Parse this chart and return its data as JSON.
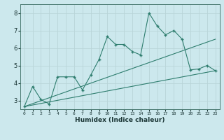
{
  "xlabel": "Humidex (Indice chaleur)",
  "bg_color": "#cce8ed",
  "grid_color": "#b8d4d8",
  "line_color": "#2e7d6e",
  "xlim": [
    -0.5,
    23.5
  ],
  "ylim": [
    2.5,
    8.5
  ],
  "xticks": [
    0,
    1,
    2,
    3,
    4,
    5,
    6,
    7,
    8,
    9,
    10,
    11,
    12,
    13,
    14,
    15,
    16,
    17,
    18,
    19,
    20,
    21,
    22,
    23
  ],
  "yticks": [
    3,
    4,
    5,
    6,
    7,
    8
  ],
  "zigzag_x": [
    0,
    1,
    2,
    3,
    4,
    5,
    6,
    7,
    8,
    9,
    10,
    11,
    12,
    13,
    14,
    15,
    16,
    17,
    18,
    19,
    20,
    21,
    22,
    23
  ],
  "zigzag_y": [
    2.65,
    3.8,
    3.05,
    2.8,
    4.35,
    4.35,
    4.35,
    3.6,
    4.45,
    5.35,
    6.65,
    6.2,
    6.2,
    5.8,
    5.6,
    8.0,
    7.25,
    6.75,
    7.0,
    6.5,
    4.75,
    4.8,
    5.0,
    4.7
  ],
  "lower_line_x": [
    0,
    23
  ],
  "lower_line_y": [
    2.65,
    4.7
  ],
  "upper_line_x": [
    0,
    23
  ],
  "upper_line_y": [
    2.65,
    6.5
  ]
}
